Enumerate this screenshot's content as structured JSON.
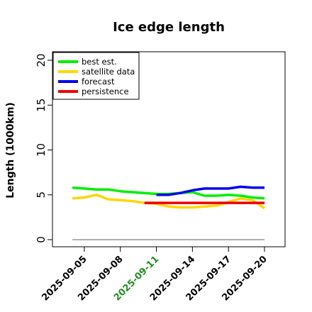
{
  "chart_data": {
    "type": "line",
    "title": "Ice edge length",
    "xlabel": "",
    "ylabel": "Length (1000km)",
    "ylim": [
      0,
      21
    ],
    "yticks": [
      0,
      5,
      10,
      15,
      20
    ],
    "x_ticks": [
      "2025-09-05",
      "2025-09-08",
      "2025-09-11",
      "2025-09-14",
      "2025-09-17",
      "2025-09-20"
    ],
    "highlight_tick": "2025-09-11",
    "highlight_color": "#228B22",
    "baseline": {
      "value": 0,
      "color": "#808080"
    },
    "legend_position": "top-left",
    "series": [
      {
        "name": "best est.",
        "color": "#00EE00",
        "x": [
          "2025-09-04",
          "2025-09-05",
          "2025-09-06",
          "2025-09-07",
          "2025-09-08",
          "2025-09-09",
          "2025-09-10",
          "2025-09-11",
          "2025-09-12",
          "2025-09-13",
          "2025-09-14",
          "2025-09-15",
          "2025-09-16",
          "2025-09-17",
          "2025-09-18",
          "2025-09-19",
          "2025-09-20"
        ],
        "y": [
          5.8,
          5.7,
          5.6,
          5.6,
          5.4,
          5.3,
          5.2,
          5.1,
          5.1,
          5.2,
          5.3,
          4.9,
          4.9,
          5.0,
          4.9,
          4.7,
          4.6
        ]
      },
      {
        "name": "satellite data",
        "color": "#FFD700",
        "x": [
          "2025-09-04",
          "2025-09-05",
          "2025-09-06",
          "2025-09-07",
          "2025-09-08",
          "2025-09-09",
          "2025-09-10",
          "2025-09-11",
          "2025-09-12",
          "2025-09-13",
          "2025-09-14",
          "2025-09-15",
          "2025-09-16",
          "2025-09-17",
          "2025-09-18",
          "2025-09-19",
          "2025-09-20"
        ],
        "y": [
          4.6,
          4.7,
          5.0,
          4.5,
          4.4,
          4.3,
          4.1,
          4.0,
          3.7,
          3.6,
          3.6,
          3.7,
          3.8,
          4.2,
          4.6,
          4.4,
          3.5
        ]
      },
      {
        "name": "forecast",
        "color": "#0000EE",
        "x": [
          "2025-09-11",
          "2025-09-12",
          "2025-09-13",
          "2025-09-14",
          "2025-09-15",
          "2025-09-16",
          "2025-09-17",
          "2025-09-18",
          "2025-09-19",
          "2025-09-20"
        ],
        "y": [
          5.0,
          5.0,
          5.2,
          5.5,
          5.7,
          5.7,
          5.7,
          5.9,
          5.8,
          5.8
        ]
      },
      {
        "name": "persistence",
        "color": "#EE0000",
        "x": [
          "2025-09-10",
          "2025-09-11",
          "2025-09-12",
          "2025-09-13",
          "2025-09-14",
          "2025-09-15",
          "2025-09-16",
          "2025-09-17",
          "2025-09-18",
          "2025-09-19",
          "2025-09-20"
        ],
        "y": [
          4.1,
          4.1,
          4.1,
          4.1,
          4.1,
          4.1,
          4.1,
          4.1,
          4.1,
          4.1,
          4.1
        ]
      }
    ]
  }
}
